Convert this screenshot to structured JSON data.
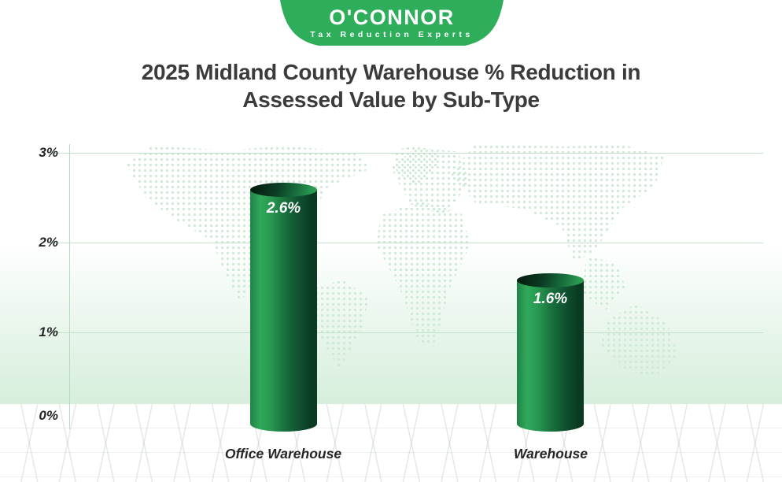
{
  "logo": {
    "name": "O'CONNOR",
    "tagline": "Tax Reduction Experts"
  },
  "title": {
    "line1": "2025 Midland County  Warehouse % Reduction in",
    "line2": "Assessed Value by Sub-Type"
  },
  "chart_data": {
    "type": "bar",
    "style": "3d-cylinder",
    "title": "2025 Midland County Warehouse % Reduction in Assessed Value by Sub-Type",
    "categories": [
      "Office Warehouse",
      "Warehouse"
    ],
    "values": [
      2.6,
      1.6
    ],
    "value_labels": [
      "2.6%",
      "1.6%"
    ],
    "xlabel": "",
    "ylabel": "",
    "ylim": [
      0,
      3
    ],
    "yticks": [
      {
        "label": "3%"
      },
      {
        "label": "2%"
      },
      {
        "label": "1%"
      },
      {
        "label": "0%"
      }
    ],
    "grid": true,
    "legend": "none",
    "colors": {
      "brand_green": "#2EAD5A",
      "bar_light": "#2FA95B",
      "bar_dark": "#0A3A21",
      "gridline": "#C3E0CB",
      "map_dots": "#CFE9D7",
      "title_text": "#3B3B3B",
      "value_text": "#FFFFFF"
    }
  }
}
